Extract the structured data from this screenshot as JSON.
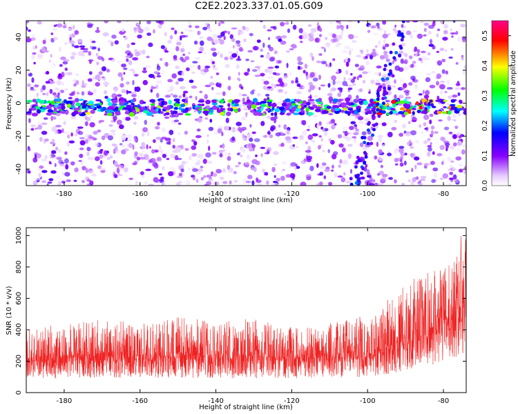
{
  "title": "C2E2.2023.337.01.05.G09",
  "colors": {
    "snr_line": "#ee2222",
    "background": "#ffffff"
  },
  "chart_data": [
    {
      "type": "heatmap",
      "title": "C2E2.2023.337.01.05.G09",
      "xlabel": "Height of straight line (km)",
      "ylabel": "Frequency (Hz)",
      "xlim": [
        -190,
        -74
      ],
      "ylim": [
        -50,
        50
      ],
      "xticks": [
        -180,
        -160,
        -140,
        -120,
        -100,
        -80
      ],
      "yticks": [
        -40,
        -20,
        0,
        20,
        40
      ],
      "colorbar": {
        "label": "Normalized spectral amplitude",
        "range": [
          0,
          0.55
        ],
        "ticks": [
          0.0,
          0.1,
          0.2,
          0.3,
          0.4,
          0.5
        ],
        "colormap": [
          "#ffffff",
          "#8800ff",
          "#0000ff",
          "#00ffff",
          "#00ff00",
          "#ffff00",
          "#ff0000",
          "#ff0088"
        ]
      },
      "features": [
        {
          "name": "0 Hz line",
          "frequency_hz": [
            -5,
            0
          ],
          "height_km": [
            -190,
            -74
          ],
          "peak_amplitude": 0.5
        },
        {
          "name": "diagonal track",
          "frequency_hz": [
            -50,
            50
          ],
          "height_km": [
            -104,
            -90
          ]
        }
      ]
    },
    {
      "type": "line",
      "xlabel": "Height of straight line (km)",
      "ylabel": "SNR (10 * v/v)",
      "xlim": [
        -190,
        -74
      ],
      "ylim": [
        0,
        1050
      ],
      "xticks": [
        -180,
        -160,
        -140,
        -120,
        -100,
        -80
      ],
      "yticks": [
        0,
        200,
        400,
        600,
        800,
        1000
      ],
      "envelope": {
        "height_km": [
          -190,
          -180,
          -170,
          -160,
          -150,
          -140,
          -130,
          -120,
          -110,
          -100,
          -95,
          -90,
          -85,
          -80,
          -77,
          -75
        ],
        "snr_low": [
          90,
          90,
          95,
          90,
          95,
          90,
          90,
          90,
          95,
          100,
          110,
          140,
          160,
          200,
          220,
          250
        ],
        "snr_high": [
          420,
          430,
          470,
          440,
          480,
          460,
          470,
          420,
          450,
          500,
          590,
          700,
          760,
          800,
          880,
          1050
        ]
      }
    }
  ]
}
